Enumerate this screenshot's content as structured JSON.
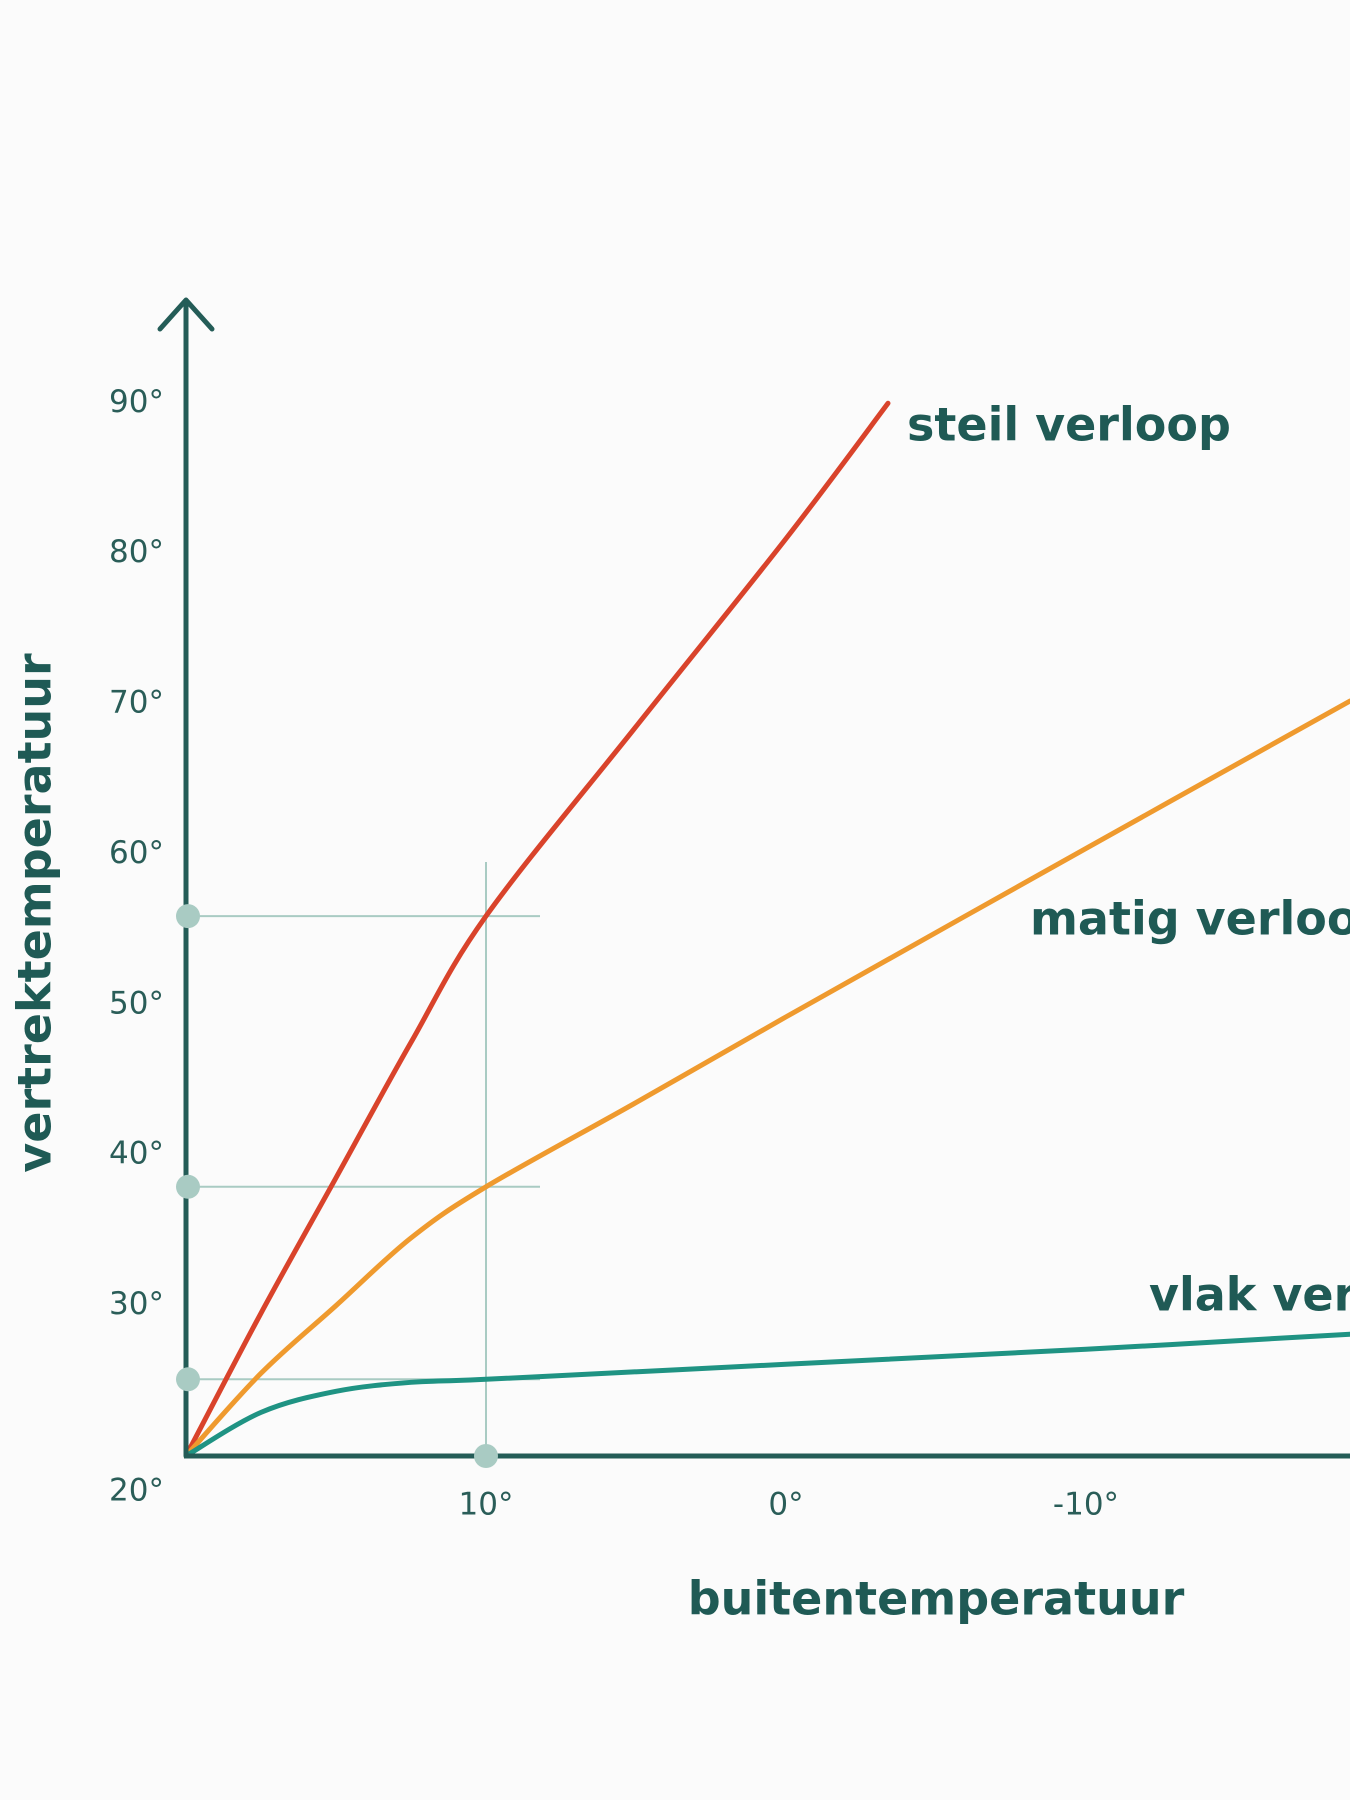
{
  "chart_data": {
    "type": "line",
    "x_label": "buitentemperatuur",
    "y_label": "vertrektemperatuur",
    "xlim": [
      20,
      -18.8
    ],
    "ylim": [
      20,
      97
    ],
    "xticks": [
      {
        "value": 10,
        "label": "10°"
      },
      {
        "value": 0,
        "label": "0°"
      },
      {
        "value": -10,
        "label": "-10°"
      }
    ],
    "yticks": [
      {
        "value": 20,
        "label": "20°"
      },
      {
        "value": 30,
        "label": "30°"
      },
      {
        "value": 40,
        "label": "40°"
      },
      {
        "value": 50,
        "label": "50°"
      },
      {
        "value": 60,
        "label": "60°"
      },
      {
        "value": 70,
        "label": "70°"
      },
      {
        "value": 80,
        "label": "80°"
      },
      {
        "value": 90,
        "label": "90°"
      }
    ],
    "series": [
      {
        "name": "steil verloop",
        "color": "#d9432b",
        "x": [
          20,
          17.5,
          15,
          12.5,
          10,
          5,
          0,
          -3.4
        ],
        "values": [
          20,
          29.5,
          38.5,
          47.5,
          55.9,
          68.5,
          81,
          90
        ]
      },
      {
        "name": "matig verloop",
        "color": "#ef9a2e",
        "x": [
          20,
          17.5,
          15,
          12.5,
          10,
          5,
          0,
          -10,
          -18.8
        ],
        "values": [
          20,
          25.5,
          30,
          34.5,
          37.9,
          43.5,
          49.2,
          60.4,
          70.2
        ]
      },
      {
        "name": "vlak verloop",
        "color": "#1f9383",
        "x": [
          20,
          17.5,
          15,
          12.5,
          10,
          0,
          -10,
          -18.8
        ],
        "values": [
          20,
          22.9,
          24.3,
          24.9,
          25.1,
          26.1,
          27.1,
          28.1
        ]
      }
    ],
    "guides": {
      "x": 10,
      "y": [
        55.9,
        37.9,
        25.1
      ]
    }
  }
}
